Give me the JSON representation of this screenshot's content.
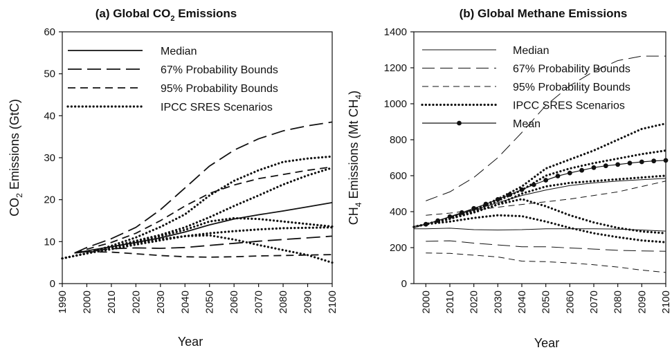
{
  "chart_data": [
    {
      "type": "line",
      "title": "(a) Global CO",
      "title_sub": "2",
      "title_tail": " Emissions",
      "xlabel": "Year",
      "ylabel_pre": "CO",
      "ylabel_sub": "2",
      "ylabel_tail": " Emissions (GtC)",
      "xlim": [
        1990,
        2100
      ],
      "ylim": [
        0,
        60
      ],
      "xticks": [
        "1990",
        "2000",
        "2010",
        "2020",
        "2030",
        "2040",
        "2050",
        "2060",
        "2070",
        "2080",
        "2090",
        "2100"
      ],
      "yticks": [
        "0",
        "10",
        "20",
        "30",
        "40",
        "50",
        "60"
      ],
      "grid": false,
      "legend_position": "top-left",
      "legend": [
        "Median",
        "67% Probability Bounds",
        "95% Probability Bounds",
        "IPCC SRES Scenarios"
      ],
      "series": [
        {
          "name": "Median",
          "style": "solid",
          "x": [
            1995,
            2000,
            2010,
            2020,
            2030,
            2040,
            2050,
            2060,
            2070,
            2080,
            2090,
            2100
          ],
          "y": [
            7.3,
            7.8,
            8.8,
            9.8,
            10.9,
            12.3,
            14.0,
            15.4,
            16.4,
            17.3,
            18.3,
            19.3
          ]
        },
        {
          "name": "67% Probability Bounds",
          "style": "longdash",
          "x": [
            1995,
            2000,
            2010,
            2020,
            2030,
            2040,
            2050,
            2060,
            2070,
            2080,
            2090,
            2100
          ],
          "y": [
            7.3,
            8.6,
            10.7,
            13.4,
            17.6,
            22.8,
            28.0,
            31.8,
            34.5,
            36.4,
            37.6,
            38.5
          ]
        },
        {
          "name": "67% Probability Bounds",
          "style": "longdash",
          "x": [
            1995,
            2000,
            2010,
            2020,
            2030,
            2040,
            2050,
            2060,
            2070,
            2080,
            2090,
            2100
          ],
          "y": [
            7.3,
            7.6,
            8.3,
            8.5,
            8.4,
            8.6,
            9.1,
            9.6,
            10.1,
            10.5,
            10.9,
            11.3
          ]
        },
        {
          "name": "95% Probability Bounds",
          "style": "shortdash",
          "x": [
            1995,
            2000,
            2010,
            2020,
            2030,
            2040,
            2050,
            2060,
            2070,
            2080,
            2090,
            2100
          ],
          "y": [
            7.3,
            8.2,
            9.8,
            12.0,
            15.0,
            18.5,
            21.5,
            23.5,
            25.0,
            26.0,
            27.0,
            27.8
          ]
        },
        {
          "name": "95% Probability Bounds",
          "style": "shortdash",
          "x": [
            1995,
            2000,
            2010,
            2020,
            2030,
            2040,
            2050,
            2060,
            2070,
            2080,
            2090,
            2100
          ],
          "y": [
            7.3,
            7.6,
            7.5,
            7.1,
            6.7,
            6.4,
            6.3,
            6.4,
            6.6,
            6.7,
            6.8,
            6.9
          ]
        },
        {
          "name": "IPCC SRES Scenarios",
          "style": "dotted",
          "x": [
            1990,
            2000,
            2010,
            2020,
            2030,
            2040,
            2050,
            2060,
            2070,
            2080,
            2090,
            2100
          ],
          "y": [
            6.0,
            7.2,
            9.0,
            11.0,
            13.5,
            16.5,
            21.0,
            24.5,
            27.0,
            29.0,
            29.8,
            30.3
          ]
        },
        {
          "name": "IPCC SRES Scenarios",
          "style": "dotted",
          "x": [
            1990,
            2000,
            2010,
            2020,
            2030,
            2040,
            2050,
            2060,
            2070,
            2080,
            2090,
            2100
          ],
          "y": [
            6.0,
            7.2,
            8.7,
            10.2,
            11.6,
            13.4,
            15.8,
            18.5,
            21.0,
            23.6,
            25.8,
            27.6
          ]
        },
        {
          "name": "IPCC SRES Scenarios",
          "style": "dotted",
          "x": [
            1990,
            2000,
            2010,
            2020,
            2030,
            2040,
            2050,
            2060,
            2070,
            2080,
            2090,
            2100
          ],
          "y": [
            6.0,
            7.2,
            8.6,
            10.0,
            11.3,
            12.8,
            14.8,
            15.6,
            15.4,
            14.8,
            14.2,
            13.6
          ]
        },
        {
          "name": "IPCC SRES Scenarios",
          "style": "dotted",
          "x": [
            1990,
            2000,
            2010,
            2020,
            2030,
            2040,
            2050,
            2060,
            2070,
            2080,
            2090,
            2100
          ],
          "y": [
            6.0,
            7.2,
            8.2,
            9.3,
            10.3,
            11.3,
            12.0,
            12.5,
            12.9,
            13.2,
            13.3,
            13.4
          ]
        },
        {
          "name": "IPCC SRES Scenarios",
          "style": "dotted",
          "x": [
            1990,
            2000,
            2010,
            2020,
            2030,
            2040,
            2050,
            2060,
            2070,
            2080,
            2090,
            2100
          ],
          "y": [
            6.0,
            7.2,
            8.5,
            9.6,
            10.6,
            11.3,
            11.5,
            10.5,
            9.2,
            8.0,
            6.8,
            5.0
          ]
        }
      ]
    },
    {
      "type": "line",
      "title": "(b) Global Methane Emissions",
      "xlabel": "Year",
      "ylabel_pre": "CH",
      "ylabel_sub": "4",
      "ylabel_tail": " Emissions (Mt CH",
      "ylabel_sub2": "4",
      "ylabel_end": ")",
      "xlim": [
        1995,
        2100
      ],
      "ylim": [
        0,
        1400
      ],
      "xticks": [
        "2000",
        "2010",
        "2020",
        "2030",
        "2040",
        "2050",
        "2060",
        "2070",
        "2080",
        "2090",
        "2100"
      ],
      "yticks": [
        "0",
        "200",
        "400",
        "600",
        "800",
        "1000",
        "1200",
        "1400"
      ],
      "grid": false,
      "legend_position": "top-left",
      "legend": [
        "Median",
        "67% Probability Bounds",
        "95% Probability Bounds",
        "IPCC SRES Scenarios",
        "Mean"
      ],
      "series": [
        {
          "name": "Median",
          "style": "thin-solid",
          "x": [
            1995,
            2000,
            2010,
            2020,
            2030,
            2040,
            2050,
            2060,
            2070,
            2080,
            2090,
            2100
          ],
          "y": [
            310,
            330,
            370,
            410,
            450,
            490,
            520,
            545,
            560,
            570,
            578,
            585
          ]
        },
        {
          "name": "Median",
          "style": "thin-solid",
          "x": [
            1995,
            2000,
            2010,
            2020,
            2030,
            2040,
            2050,
            2060,
            2070,
            2080,
            2090,
            2100
          ],
          "y": [
            305,
            305,
            308,
            300,
            298,
            300,
            305,
            305,
            305,
            303,
            298,
            292
          ]
        },
        {
          "name": "67% Probability Bounds",
          "style": "thin-longdash",
          "x": [
            2000,
            2010,
            2020,
            2030,
            2040,
            2050,
            2060,
            2070,
            2080,
            2090,
            2100
          ],
          "y": [
            460,
            510,
            590,
            700,
            840,
            990,
            1100,
            1180,
            1240,
            1265,
            1265
          ]
        },
        {
          "name": "67% Probability Bounds",
          "style": "thin-longdash",
          "x": [
            2000,
            2010,
            2020,
            2030,
            2040,
            2050,
            2060,
            2070,
            2080,
            2090,
            2100
          ],
          "y": [
            235,
            238,
            225,
            215,
            205,
            205,
            198,
            192,
            185,
            182,
            180
          ]
        },
        {
          "name": "95% Probability Bounds",
          "style": "thin-shortdash",
          "x": [
            2000,
            2010,
            2020,
            2030,
            2040,
            2050,
            2060,
            2070,
            2080,
            2090,
            2100
          ],
          "y": [
            380,
            392,
            408,
            425,
            440,
            455,
            470,
            490,
            510,
            540,
            570
          ]
        },
        {
          "name": "95% Probability Bounds",
          "style": "thin-shortdash",
          "x": [
            2000,
            2010,
            2020,
            2030,
            2040,
            2050,
            2060,
            2070,
            2080,
            2090,
            2100
          ],
          "y": [
            170,
            168,
            158,
            148,
            125,
            122,
            115,
            105,
            92,
            75,
            62
          ]
        },
        {
          "name": "IPCC SRES Scenarios",
          "style": "dotted",
          "x": [
            1995,
            2000,
            2010,
            2020,
            2030,
            2040,
            2050,
            2060,
            2070,
            2080,
            2090,
            2100
          ],
          "y": [
            315,
            330,
            365,
            410,
            470,
            540,
            640,
            690,
            740,
            800,
            860,
            890
          ]
        },
        {
          "name": "IPCC SRES Scenarios",
          "style": "dotted",
          "x": [
            1995,
            2000,
            2010,
            2020,
            2030,
            2040,
            2050,
            2060,
            2070,
            2080,
            2090,
            2100
          ],
          "y": [
            315,
            330,
            360,
            405,
            460,
            520,
            600,
            640,
            670,
            695,
            720,
            740
          ]
        },
        {
          "name": "IPCC SRES Scenarios",
          "style": "dotted",
          "x": [
            1995,
            2000,
            2010,
            2020,
            2030,
            2040,
            2050,
            2060,
            2070,
            2080,
            2090,
            2100
          ],
          "y": [
            315,
            330,
            360,
            395,
            440,
            500,
            540,
            560,
            570,
            580,
            590,
            600
          ]
        },
        {
          "name": "IPCC SRES Scenarios",
          "style": "dotted",
          "x": [
            1995,
            2000,
            2010,
            2020,
            2030,
            2040,
            2050,
            2060,
            2070,
            2080,
            2090,
            2100
          ],
          "y": [
            315,
            330,
            360,
            400,
            440,
            470,
            430,
            380,
            340,
            310,
            290,
            280
          ]
        },
        {
          "name": "IPCC SRES Scenarios",
          "style": "dotted",
          "x": [
            1995,
            2000,
            2010,
            2020,
            2030,
            2040,
            2050,
            2060,
            2070,
            2080,
            2090,
            2100
          ],
          "y": [
            315,
            330,
            345,
            365,
            380,
            375,
            345,
            310,
            280,
            258,
            240,
            230
          ]
        },
        {
          "name": "Mean",
          "style": "solid-markers",
          "x": [
            1995,
            2000,
            2005,
            2010,
            2015,
            2020,
            2025,
            2030,
            2035,
            2040,
            2045,
            2050,
            2055,
            2060,
            2065,
            2070,
            2075,
            2080,
            2085,
            2090,
            2095,
            2100
          ],
          "y": [
            318,
            330,
            350,
            372,
            395,
            418,
            442,
            468,
            495,
            522,
            550,
            575,
            598,
            615,
            630,
            645,
            655,
            662,
            670,
            677,
            682,
            685
          ]
        }
      ]
    }
  ]
}
